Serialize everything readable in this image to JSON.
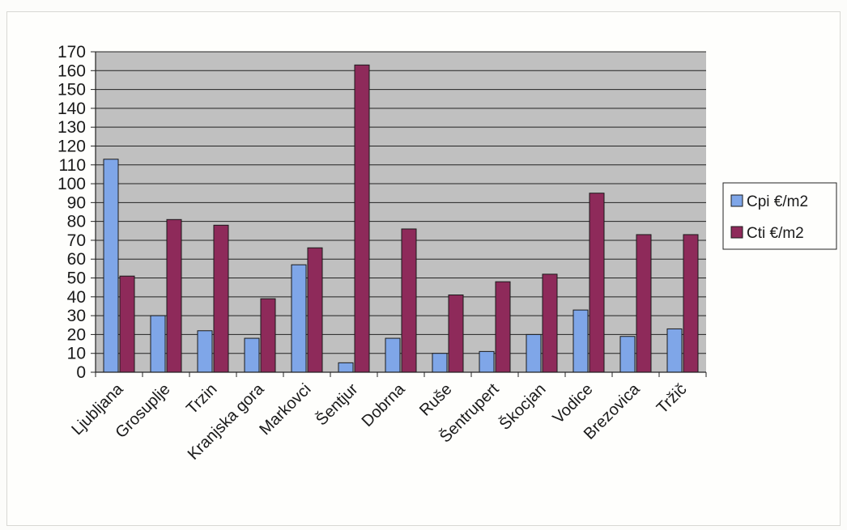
{
  "chart_data": {
    "type": "bar",
    "categories": [
      "Ljubljana",
      "Grosuplje",
      "Trzin",
      "Kranjska gora",
      "Markovci",
      "Šentjur",
      "Dobrna",
      "Ruše",
      "Šentrupert",
      "Škocjan",
      "Vodice",
      "Brezovica",
      "Tržič"
    ],
    "series": [
      {
        "name": "Cpi €/m2",
        "color": "#7fa6e8",
        "values": [
          113,
          30,
          22,
          18,
          57,
          5,
          18,
          10,
          11,
          20,
          33,
          19,
          23
        ]
      },
      {
        "name": "Cti €/m2",
        "color": "#8e2a5a",
        "values": [
          51,
          81,
          78,
          39,
          66,
          163,
          76,
          41,
          48,
          52,
          95,
          73,
          73
        ]
      }
    ],
    "title": "",
    "xlabel": "",
    "ylabel": "",
    "ylim": [
      0,
      170
    ],
    "yticks": [
      0,
      10,
      20,
      30,
      40,
      50,
      60,
      70,
      80,
      90,
      100,
      110,
      120,
      130,
      140,
      150,
      160,
      170
    ],
    "grid": true,
    "legend": "right",
    "plot_background": "#c0c0c0"
  }
}
